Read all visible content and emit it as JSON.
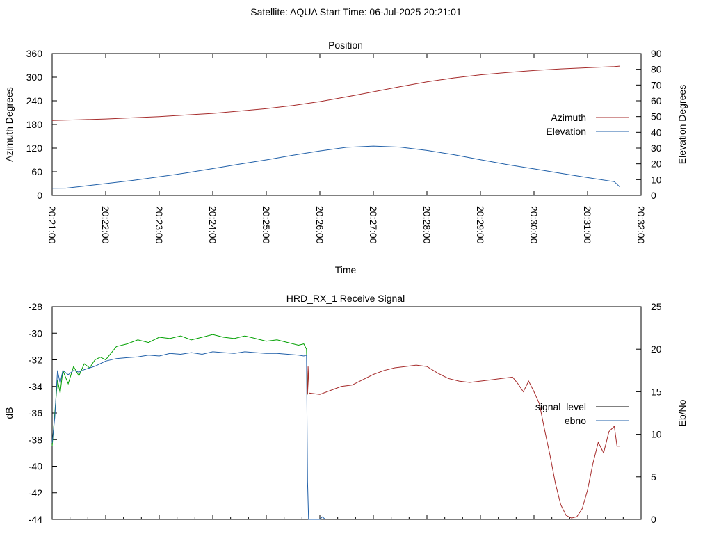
{
  "page_title": "Satellite: AQUA    Start Time: 06-Jul-2025 20:21:01",
  "chart_data": [
    {
      "type": "line",
      "title": "Position",
      "xlabel": "Time",
      "ylabel": "Azimuth Degrees",
      "y2label": "Elevation Degrees",
      "x_ticks": [
        "20:21:00",
        "20:22:00",
        "20:23:00",
        "20:24:00",
        "20:25:00",
        "20:26:00",
        "20:27:00",
        "20:28:00",
        "20:29:00",
        "20:30:00",
        "20:31:00",
        "20:32:00"
      ],
      "x_range_minutes": [
        0,
        11
      ],
      "ylim": [
        0,
        360
      ],
      "y_ticks": [
        0,
        60,
        120,
        180,
        240,
        300,
        360
      ],
      "y2lim": [
        0,
        90
      ],
      "y2_ticks": [
        0,
        10,
        20,
        30,
        40,
        50,
        60,
        70,
        80,
        90
      ],
      "grid": false,
      "legend": "right",
      "series": [
        {
          "name": "Azimuth",
          "axis": "y",
          "color": "#a52a2a",
          "x_minutes": [
            0.0,
            0.5,
            1.0,
            1.5,
            2.0,
            2.5,
            3.0,
            3.5,
            4.0,
            4.5,
            5.0,
            5.5,
            6.0,
            6.5,
            7.0,
            7.5,
            8.0,
            8.5,
            9.0,
            9.5,
            10.0,
            10.5,
            10.6
          ],
          "values": [
            190,
            192,
            194,
            197,
            200,
            204,
            208,
            214,
            220,
            228,
            238,
            250,
            263,
            276,
            288,
            298,
            306,
            312,
            317,
            321,
            324,
            327,
            328
          ]
        },
        {
          "name": "Elevation",
          "axis": "y2",
          "color": "#1f5fa8",
          "x_minutes": [
            0.0,
            0.25,
            0.5,
            1.0,
            1.5,
            2.0,
            2.5,
            3.0,
            3.5,
            4.0,
            4.5,
            5.0,
            5.5,
            6.0,
            6.5,
            7.0,
            7.5,
            8.0,
            8.5,
            9.0,
            9.5,
            10.0,
            10.5,
            10.6
          ],
          "values": [
            4.5,
            4.6,
            5.5,
            7.5,
            9.5,
            11.8,
            14.2,
            17,
            19.8,
            22.5,
            25.5,
            28.2,
            30.5,
            31.3,
            30.6,
            28.5,
            25.8,
            22.6,
            19.5,
            16.8,
            14,
            11.3,
            8.7,
            5.5
          ]
        }
      ]
    },
    {
      "type": "line",
      "title": "HRD_RX_1 Receive Signal",
      "ylabel": "dB",
      "y2label": "Eb/No",
      "x_range_minutes": [
        0,
        11
      ],
      "ylim": [
        -44,
        -28
      ],
      "y_ticks": [
        -44,
        -42,
        -40,
        -38,
        -36,
        -34,
        -32,
        -30,
        -28
      ],
      "y2lim": [
        0,
        25
      ],
      "y2_ticks": [
        0,
        5,
        10,
        15,
        20,
        25
      ],
      "grid": false,
      "legend": "right",
      "series": [
        {
          "name": "signal_level",
          "axis": "y",
          "color": "#000000",
          "segments_color": [
            "#00a000",
            "#a52a2a"
          ],
          "x_minutes": [
            0.0,
            0.05,
            0.1,
            0.15,
            0.2,
            0.3,
            0.4,
            0.5,
            0.6,
            0.7,
            0.8,
            0.9,
            1.0,
            1.2,
            1.4,
            1.6,
            1.8,
            2.0,
            2.2,
            2.4,
            2.6,
            2.8,
            3.0,
            3.2,
            3.4,
            3.6,
            3.8,
            4.0,
            4.2,
            4.4,
            4.6,
            4.7,
            4.75,
            4.77,
            4.78,
            4.8,
            5.0,
            5.2,
            5.4,
            5.6,
            5.8,
            6.0,
            6.2,
            6.4,
            6.6,
            6.8,
            7.0,
            7.2,
            7.4,
            7.6,
            7.8,
            8.0,
            8.2,
            8.4,
            8.6,
            8.7,
            8.8,
            8.9,
            9.0,
            9.1,
            9.2,
            9.3,
            9.4,
            9.5,
            9.6,
            9.7,
            9.8,
            9.9,
            10.0,
            10.1,
            10.2,
            10.3,
            10.4,
            10.5,
            10.55,
            10.6
          ],
          "values": [
            -38.5,
            -36,
            -33.5,
            -34.5,
            -32.8,
            -33.8,
            -32.5,
            -33.2,
            -32.3,
            -32.6,
            -32.0,
            -31.8,
            -32.0,
            -31.0,
            -30.8,
            -30.5,
            -30.7,
            -30.3,
            -30.4,
            -30.2,
            -30.5,
            -30.3,
            -30.1,
            -30.3,
            -30.4,
            -30.2,
            -30.4,
            -30.6,
            -30.5,
            -30.7,
            -30.9,
            -30.8,
            -31.2,
            -34.6,
            -32.5,
            -34.5,
            -34.6,
            -34.3,
            -34.0,
            -33.9,
            -33.5,
            -33.1,
            -32.8,
            -32.6,
            -32.5,
            -32.4,
            -32.5,
            -33.0,
            -33.4,
            -33.6,
            -33.7,
            -33.6,
            -33.5,
            -33.4,
            -33.3,
            -33.8,
            -34.4,
            -33.6,
            -34.4,
            -35.3,
            -37.3,
            -39.2,
            -41.3,
            -42.9,
            -43.7,
            -43.9,
            -43.8,
            -43.2,
            -41.8,
            -39.8,
            -38.2,
            -39.0,
            -37.4,
            -37.0,
            -38.5,
            -38.5
          ]
        },
        {
          "name": "ebno",
          "axis": "y2",
          "color": "#1f5fa8",
          "x_minutes": [
            0.0,
            0.05,
            0.1,
            0.15,
            0.2,
            0.3,
            0.4,
            0.5,
            0.6,
            0.7,
            0.8,
            0.9,
            1.0,
            1.2,
            1.4,
            1.6,
            1.8,
            2.0,
            2.2,
            2.4,
            2.6,
            2.8,
            3.0,
            3.2,
            3.4,
            3.6,
            3.8,
            4.0,
            4.2,
            4.4,
            4.6,
            4.7,
            4.75,
            4.77,
            4.79,
            4.8,
            5.0,
            5.05,
            5.1
          ],
          "values": [
            9.0,
            12.0,
            17.5,
            16.0,
            17.5,
            17.0,
            17.5,
            17.3,
            17.6,
            17.8,
            18.0,
            18.3,
            18.6,
            18.9,
            19.0,
            19.1,
            19.3,
            19.2,
            19.5,
            19.4,
            19.6,
            19.4,
            19.7,
            19.6,
            19.5,
            19.7,
            19.6,
            19.5,
            19.5,
            19.4,
            19.3,
            19.2,
            19.3,
            4.5,
            0.0,
            0.0,
            0.0,
            0.3,
            0.0
          ]
        }
      ]
    }
  ]
}
